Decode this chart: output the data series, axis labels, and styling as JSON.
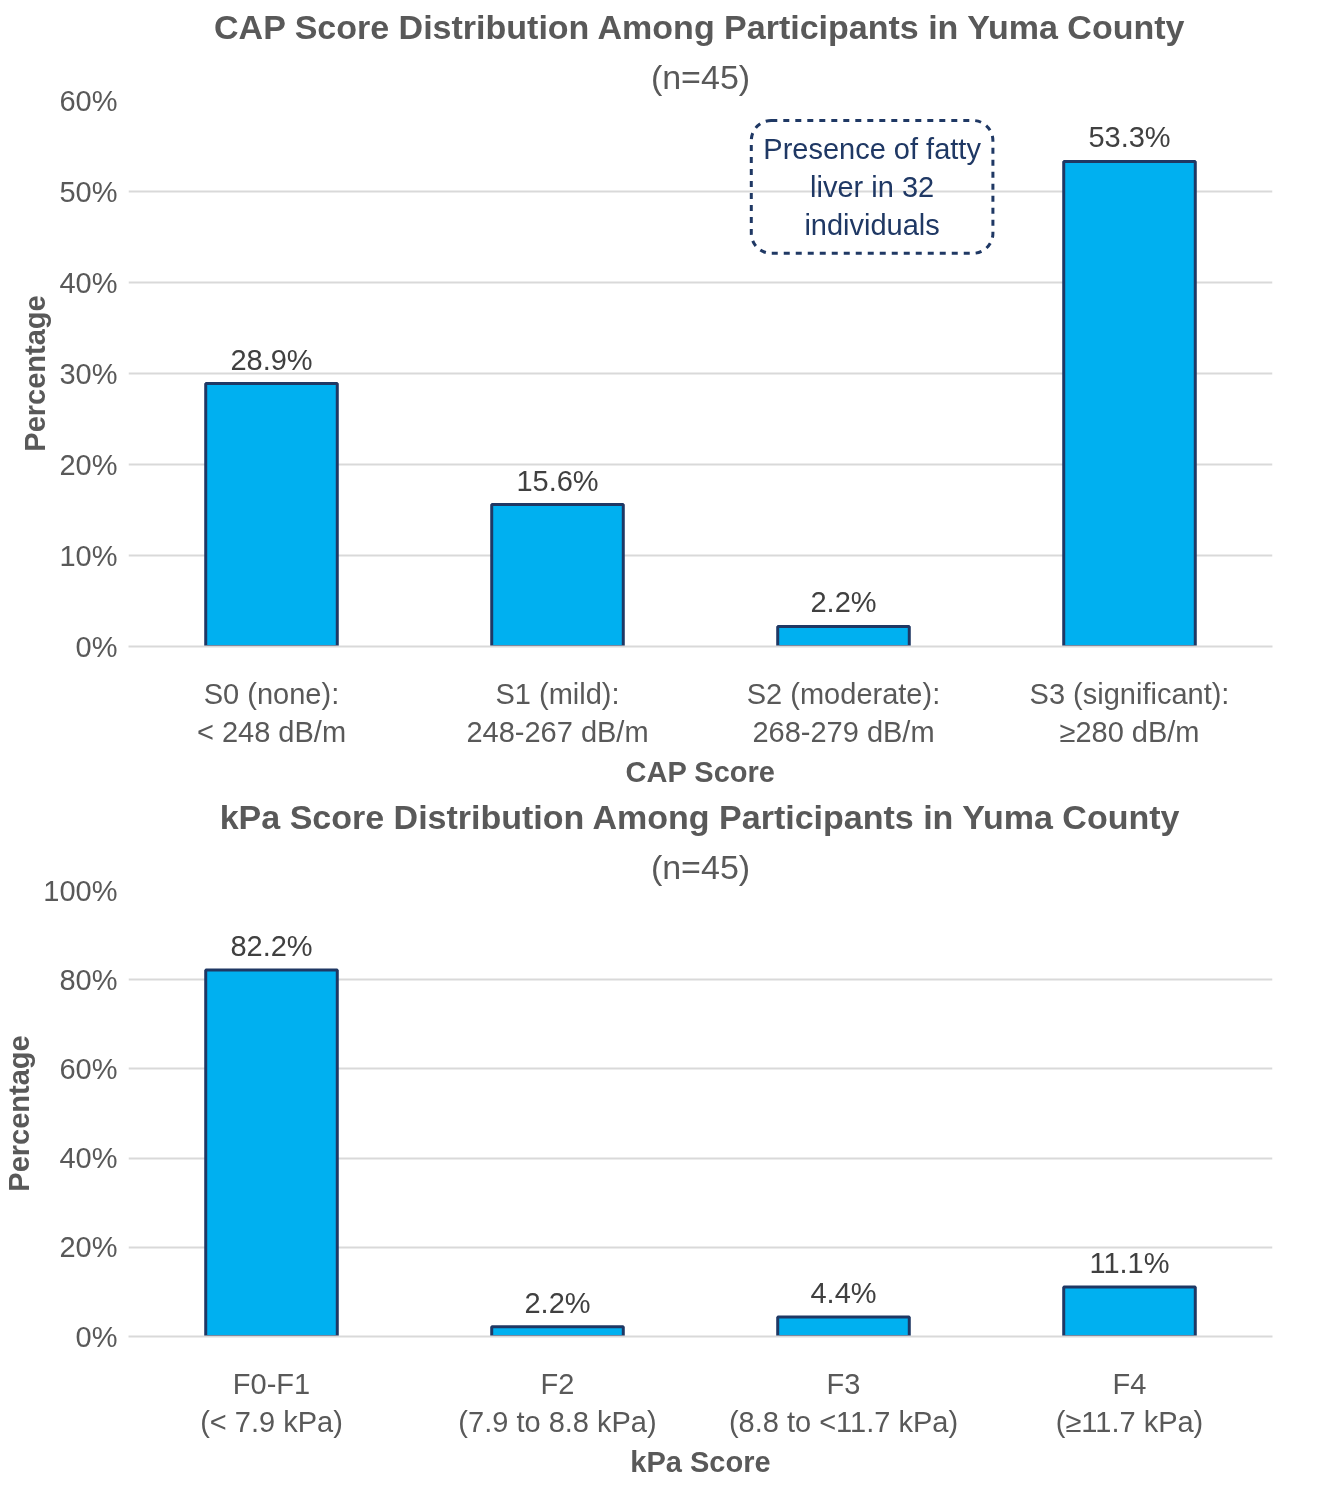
{
  "chart_data": [
    {
      "type": "bar",
      "title": "CAP Score Distribution Among Participants in Yuma County",
      "subtitle": "(n=45)",
      "xlabel": "CAP Score",
      "ylabel": "Percentage",
      "categories": [
        "S0 (none):\n< 248 dB/m",
        "S1 (mild):\n248-267 dB/m",
        "S2 (moderate):\n268-279 dB/m",
        "S3 (significant):\n≥280 dB/m"
      ],
      "values": [
        28.9,
        15.6,
        2.2,
        53.3
      ],
      "value_labels": [
        "28.9%",
        "15.6%",
        "2.2%",
        "53.3%"
      ],
      "color": "#00b0f0",
      "ylim": [
        0,
        60
      ],
      "yticks": [
        {
          "value": 0,
          "label": "0%"
        },
        {
          "value": 10,
          "label": "10%"
        },
        {
          "value": 20,
          "label": "20%"
        },
        {
          "value": 30,
          "label": "30%"
        },
        {
          "value": 40,
          "label": "40%"
        },
        {
          "value": 50,
          "label": "50%"
        },
        {
          "value": 60,
          "label": "60%"
        }
      ],
      "grid": "y",
      "annotations": [
        "Presence of fatty liver in 32 individuals"
      ]
    },
    {
      "type": "bar",
      "title": "kPa Score Distribution Among Participants in Yuma County",
      "subtitle": "(n=45)",
      "xlabel": "kPa Score",
      "ylabel": "Percentage",
      "categories": [
        "F0-F1\n(< 7.9 kPa)",
        "F2\n(7.9 to 8.8 kPa)",
        "F3\n(8.8 to <11.7 kPa)",
        "F4\n(≥11.7 kPa)"
      ],
      "values": [
        82.2,
        2.2,
        4.4,
        11.1
      ],
      "value_labels": [
        "82.2%",
        "2.2%",
        "4.4%",
        "11.1%"
      ],
      "color": "#00b0f0",
      "ylim": [
        0,
        100
      ],
      "yticks": [
        {
          "value": 0,
          "label": "0%"
        },
        {
          "value": 20,
          "label": "20%"
        },
        {
          "value": 40,
          "label": "40%"
        },
        {
          "value": 60,
          "label": "60%"
        },
        {
          "value": 80,
          "label": "80%"
        },
        {
          "value": 100,
          "label": "100%"
        }
      ],
      "grid": "y"
    }
  ]
}
